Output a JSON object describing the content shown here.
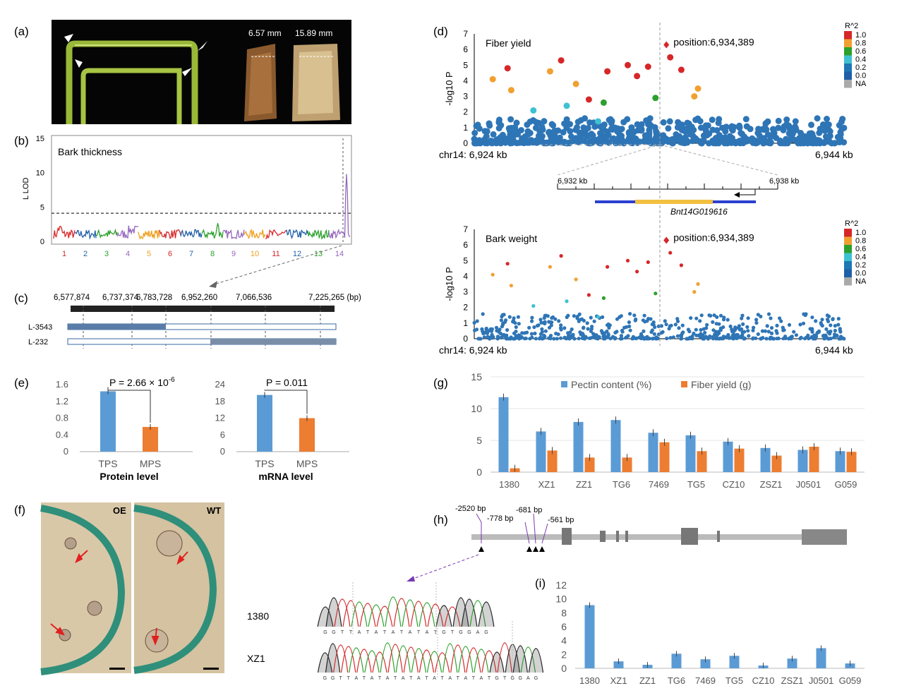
{
  "panels": {
    "a": "(a)",
    "b": "(b)",
    "c": "(c)",
    "d": "(d)",
    "e": "(e)",
    "f": "(f)",
    "g": "(g)",
    "h": "(h)",
    "i": "(i)"
  },
  "colors": {
    "blue": "#5b9bd5",
    "orange": "#ed7d31",
    "red": "#d62728",
    "lod_threshold": "#000000"
  },
  "photo_a": {
    "meas1": "6.57 mm",
    "meas2": "15.89 mm"
  },
  "panel_b": {
    "title": "Bark thickness",
    "ylabel": "L LOD",
    "yticks": [
      "0",
      "5",
      "10",
      "15"
    ],
    "chroms": [
      "1",
      "2",
      "3",
      "4",
      "5",
      "6",
      "7",
      "8",
      "9",
      "10",
      "11",
      "12",
      "13",
      "14"
    ],
    "chrom_colors": [
      "#d62728",
      "#1f5fa8",
      "#2ca02c",
      "#9467bd",
      "#f0a020",
      "#d62728",
      "#1f5fa8",
      "#2ca02c",
      "#9467bd",
      "#f0a020",
      "#d62728",
      "#1f5fa8",
      "#2ca02c",
      "#9467bd"
    ]
  },
  "panel_c": {
    "positions": [
      "6,577,874",
      "6,737,374",
      "6,783,728",
      "6,952,260",
      "7,066,536",
      "7,225,265 (bp)"
    ],
    "lines": [
      "L-3543",
      "L-232"
    ]
  },
  "panel_d": {
    "top_title": "Fiber yield",
    "bottom_title": "Bark weight",
    "ylabel": "-log10 P",
    "yticks": [
      "0",
      "1",
      "2",
      "3",
      "4",
      "5",
      "6",
      "7"
    ],
    "xleft": "chr14: 6,924 kb",
    "xright": "6,944 kb",
    "position_label": "position:6,934,389",
    "zoom_left": "6,932 kb",
    "zoom_right": "6,938 kb",
    "gene": "Bnt14G019616",
    "legend_title": "R^2",
    "legend": [
      "1.0",
      "0.8",
      "0.6",
      "0.4",
      "0.2",
      "0.0",
      "NA"
    ],
    "legend_colors": [
      "#d62728",
      "#f0a030",
      "#2ca02c",
      "#3ec1d3",
      "#1f77b4",
      "#1f5fa8",
      "#aaaaaa"
    ]
  },
  "panel_e": {
    "protein": {
      "xlabel": "Protein level",
      "p": "P = 2.66 × 10",
      "p_exp": "-6",
      "yticks": [
        "0",
        "0.4",
        "0.8",
        "1.2",
        "1.6"
      ]
    },
    "mrna": {
      "xlabel": "mRNA level",
      "p": "P = 0.011",
      "yticks": [
        "0",
        "6",
        "12",
        "18",
        "24"
      ]
    },
    "categories": [
      "TPS",
      "MPS"
    ]
  },
  "panel_f": {
    "left": "OE",
    "right": "WT",
    "row1": "1380",
    "row2": "XZ1"
  },
  "panel_h": {
    "labels": [
      "-2520 bp",
      "-778 bp",
      "-681 bp",
      "-561 bp"
    ],
    "seq1": "GGTTATATATATATGTGGAG",
    "seq2": "GGTTATATATATATATATATATGTGGAG"
  },
  "chart_data": [
    {
      "type": "line",
      "title": "Bark thickness",
      "ylabel": "LOD",
      "ylim": [
        0,
        15
      ],
      "threshold": 4.1,
      "peak": {
        "chromosome": "14",
        "value": 9.8
      }
    },
    {
      "type": "scatter",
      "title": "Fiber yield",
      "xlabel": "chr14",
      "xrange_kb": [
        6924,
        6944
      ],
      "ylim": [
        0,
        7
      ],
      "lead_position": 6934389,
      "lead_value": 6.3
    },
    {
      "type": "scatter",
      "title": "Bark weight",
      "xlabel": "chr14",
      "xrange_kb": [
        6924,
        6944
      ],
      "ylim": [
        0,
        7
      ],
      "lead_position": 6934389,
      "lead_value": 6.3
    },
    {
      "type": "bar",
      "xlabel": "Protein level",
      "categories": [
        "TPS",
        "MPS"
      ],
      "values": [
        1.44,
        0.59
      ],
      "ylim": [
        0,
        1.6
      ]
    },
    {
      "type": "bar",
      "xlabel": "mRNA level",
      "categories": [
        "TPS",
        "MPS"
      ],
      "values": [
        20.3,
        12.0
      ],
      "ylim": [
        0,
        24
      ]
    },
    {
      "type": "bar",
      "categories": [
        "1380",
        "XZ1",
        "ZZ1",
        "TG6",
        "7469",
        "TG5",
        "CZ10",
        "ZSZ1",
        "J0501",
        "G059"
      ],
      "series": [
        {
          "name": "Pectin content (%)",
          "values": [
            11.8,
            6.4,
            7.9,
            8.2,
            6.2,
            5.8,
            4.8,
            3.8,
            3.5,
            3.3
          ]
        },
        {
          "name": "Fiber yield (g)",
          "values": [
            0.6,
            3.4,
            2.3,
            2.3,
            4.7,
            3.3,
            3.7,
            2.6,
            4.0,
            3.2
          ]
        }
      ],
      "ylim": [
        0,
        15
      ],
      "yticks": [
        "0",
        "5",
        "10",
        "15"
      ]
    },
    {
      "type": "bar",
      "categories": [
        "1380",
        "XZ1",
        "ZZ1",
        "TG6",
        "7469",
        "TG5",
        "CZ10",
        "ZSZ1",
        "J0501",
        "G059"
      ],
      "values": [
        9.1,
        1.0,
        0.5,
        2.1,
        1.3,
        1.8,
        0.4,
        1.4,
        2.9,
        0.7
      ],
      "ylim": [
        0,
        12
      ],
      "yticks": [
        "0",
        "2",
        "4",
        "6",
        "8",
        "10",
        "12"
      ]
    }
  ]
}
